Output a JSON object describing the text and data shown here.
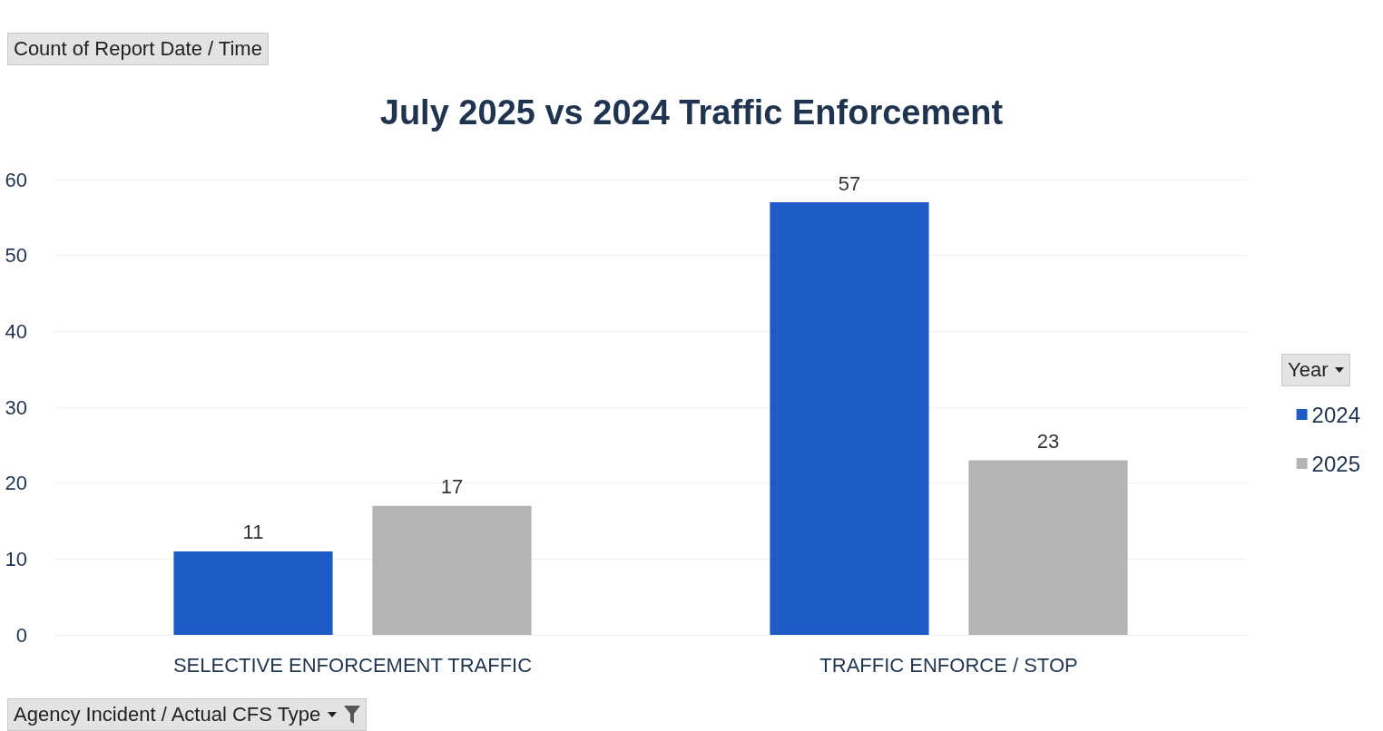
{
  "chart_data": {
    "type": "bar",
    "title": "July 2025 vs 2024 Traffic Enforcement",
    "annotations": [
      "Count of Report Date / Time"
    ],
    "xlabel": "Agency Incident / Actual CFS Type",
    "legend_title": "Year",
    "categories": [
      "SELECTIVE ENFORCEMENT TRAFFIC",
      "TRAFFIC ENFORCE / STOP"
    ],
    "series": [
      {
        "name": "2024",
        "color": "#1f5bc4",
        "values": [
          11,
          57
        ]
      },
      {
        "name": "2025",
        "color": "#b4b4b4",
        "values": [
          17,
          23
        ]
      }
    ],
    "ylim": [
      0,
      60
    ],
    "yticks": [
      0,
      10,
      20,
      30,
      40,
      50,
      60
    ],
    "grid": "y",
    "legend": "right",
    "data_labels": true
  }
}
